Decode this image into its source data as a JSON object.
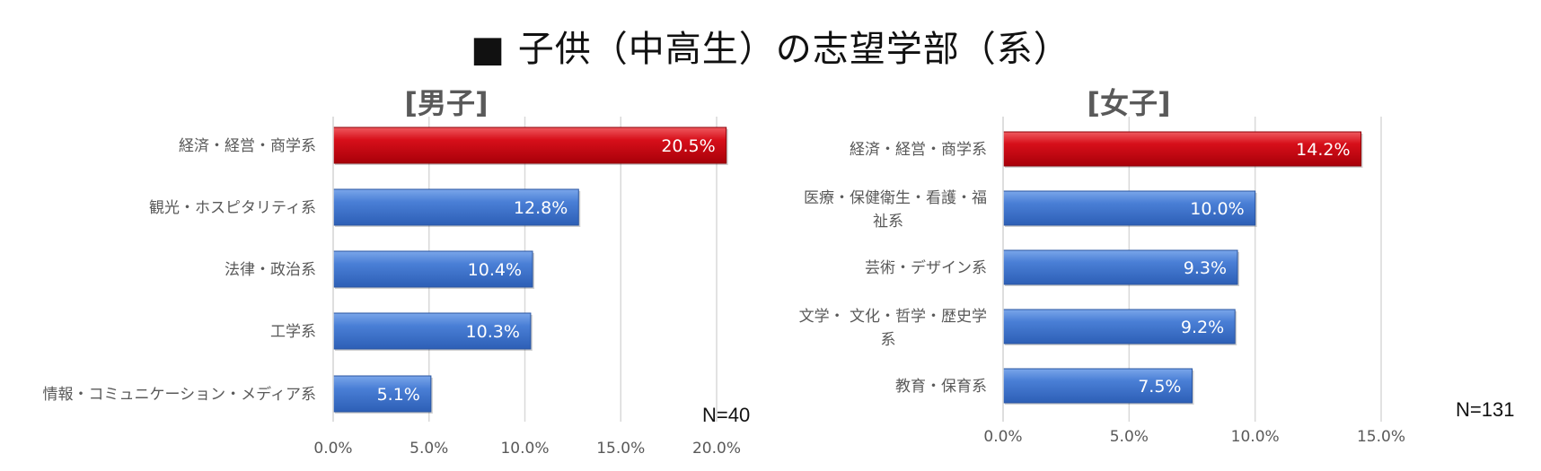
{
  "title": "■ 子供（中高生）の志望学部（系）",
  "colors": {
    "highlight": "#c8000f",
    "highlight_light": "#e8303a",
    "bar": "#3a72cf",
    "bar_light": "#6a9be3",
    "grid": "#d9d9d9"
  },
  "chart_data": [
    {
      "type": "bar",
      "orientation": "horizontal",
      "subtitle": "[男子]",
      "n_label": "N=40",
      "categories": [
        "経済・経営・商学系",
        "観光・ホスピタリティ系",
        "法律・政治系",
        "工学系",
        "情報・コミュニケーション・メディア系"
      ],
      "values": [
        20.5,
        12.8,
        10.4,
        10.3,
        5.1
      ],
      "value_labels": [
        "20.5%",
        "12.8%",
        "10.4%",
        "10.3%",
        "5.1%"
      ],
      "highlight_index": 0,
      "xlim": [
        0,
        20
      ],
      "ticks": [
        0,
        5,
        10,
        15,
        20
      ],
      "tick_labels": [
        "0.0%",
        "5.0%",
        "10.0%",
        "15.0%",
        "20.0%"
      ],
      "grid": true
    },
    {
      "type": "bar",
      "orientation": "horizontal",
      "subtitle": "[女子]",
      "n_label": "N=131",
      "categories": [
        [
          "経済・経営・商学系"
        ],
        [
          "医療・保健衛生・看護・福",
          "祉系"
        ],
        [
          "芸術・デザイン系"
        ],
        [
          "文学・ 文化・哲学・歴史学",
          "系"
        ],
        [
          "教育・保育系"
        ]
      ],
      "values": [
        14.2,
        10.0,
        9.3,
        9.2,
        7.5
      ],
      "value_labels": [
        "14.2%",
        "10.0%",
        "9.3%",
        "9.2%",
        "7.5%"
      ],
      "highlight_index": 0,
      "xlim": [
        0,
        15
      ],
      "ticks": [
        0,
        5,
        10,
        15
      ],
      "tick_labels": [
        "0.0%",
        "5.0%",
        "10.0%",
        "15.0%"
      ],
      "grid": true
    }
  ]
}
